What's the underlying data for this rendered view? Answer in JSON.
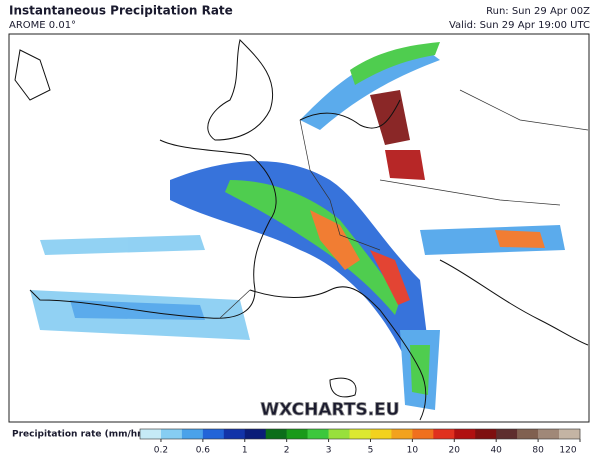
{
  "header": {
    "title": "Instantaneous Precipitation Rate",
    "subtitle": "AROME 0.01°",
    "run": "Run: Sun 29 Apr 00Z",
    "valid": "Valid: Sun 29 Apr 19:00 UTC"
  },
  "map": {
    "watermark": "WXCHARTS.EU"
  },
  "legend": {
    "label": "Precipitation rate (mm/hr)",
    "ticks": [
      0.2,
      0.6,
      1,
      2,
      3,
      5,
      10,
      20,
      40,
      80,
      120
    ],
    "colors": [
      "#c6eaf6",
      "#86cdf2",
      "#4aa2ea",
      "#2264d8",
      "#1233a8",
      "#0b1c78",
      "#0c6d1a",
      "#1a9a1a",
      "#3cc83c",
      "#98e03c",
      "#dce830",
      "#f2d21e",
      "#f2a21e",
      "#f0701e",
      "#e0301e",
      "#b01010",
      "#7e1010",
      "#5e2e2e",
      "#806050",
      "#a08878",
      "#c4b4a4"
    ]
  }
}
